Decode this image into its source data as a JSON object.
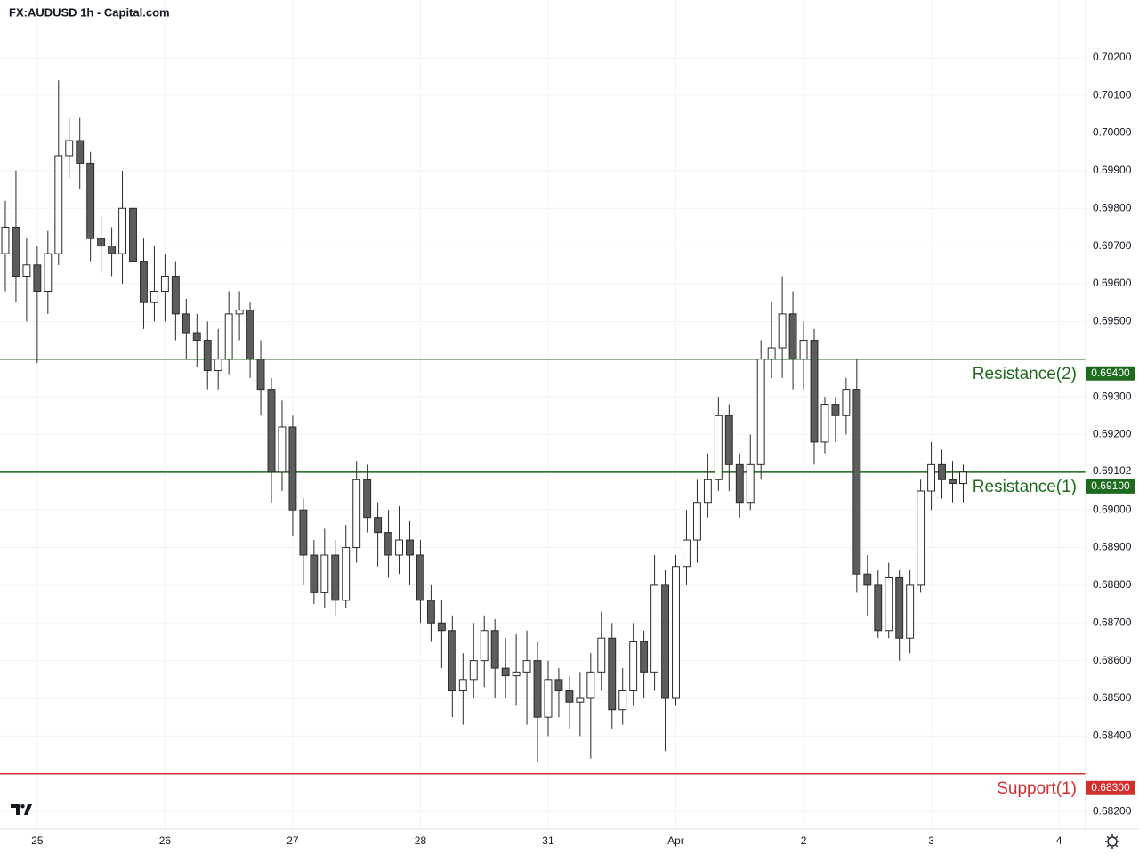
{
  "chart_data": {
    "type": "candlestick",
    "title": "FX:AUDUSD 1h - Capital.com",
    "categories": [
      null,
      null,
      null,
      "25",
      null,
      null,
      null,
      null,
      null,
      null,
      null,
      null,
      null,
      null,
      null,
      "26",
      null,
      null,
      null,
      null,
      null,
      null,
      null,
      null,
      null,
      null,
      null,
      "27",
      null,
      null,
      null,
      null,
      null,
      null,
      null,
      null,
      null,
      null,
      null,
      "28",
      null,
      null,
      null,
      null,
      null,
      null,
      null,
      null,
      null,
      null,
      null,
      "31",
      null,
      null,
      null,
      null,
      null,
      null,
      null,
      null,
      null,
      null,
      null,
      "Apr",
      null,
      null,
      null,
      null,
      null,
      null,
      null,
      null,
      null,
      null,
      null,
      "2",
      null,
      null,
      null,
      null,
      null,
      null,
      null,
      null,
      null,
      null,
      null,
      "3",
      null,
      null,
      null,
      null,
      null,
      null,
      null,
      null,
      null,
      null,
      null,
      "4",
      null,
      null
    ],
    "open": [
      0.6968,
      0.6975,
      0.6962,
      0.6965,
      0.6958,
      0.6968,
      0.6994,
      0.6998,
      0.6992,
      0.6972,
      0.697,
      0.6968,
      0.698,
      0.6966,
      0.6955,
      0.6958,
      0.6962,
      0.6952,
      0.6947,
      0.6945,
      0.6937,
      0.694,
      0.6952,
      0.6953,
      0.694,
      0.6932,
      0.691,
      0.6922,
      0.69,
      0.6888,
      0.6878,
      0.6888,
      0.6876,
      0.689,
      0.6908,
      0.6898,
      0.6894,
      0.6888,
      0.6892,
      0.6888,
      0.6876,
      0.687,
      0.6868,
      0.6852,
      0.6855,
      0.686,
      0.6868,
      0.6858,
      0.6856,
      0.6857,
      0.686,
      0.6845,
      0.6855,
      0.6852,
      0.6849,
      0.685,
      0.6857,
      0.6866,
      0.6847,
      0.6852,
      0.6865,
      0.6857,
      0.688,
      0.685,
      0.6885,
      0.6892,
      0.6902,
      0.6908,
      0.6925,
      0.6912,
      0.6902,
      0.6912,
      0.694,
      0.6943,
      0.6952,
      0.694,
      0.6945,
      0.6918,
      0.6928,
      0.6925,
      0.6932,
      0.6883,
      0.688,
      0.6868,
      0.6882,
      0.6866,
      0.688,
      0.6905,
      0.6912,
      0.6908,
      0.6907,
      null,
      null,
      null,
      null,
      null,
      null,
      null,
      null,
      null,
      null,
      null
    ],
    "high": [
      0.6982,
      0.699,
      0.6972,
      0.697,
      0.6974,
      0.7014,
      0.7004,
      0.7004,
      0.6995,
      0.6978,
      0.6975,
      0.699,
      0.6982,
      0.6972,
      0.697,
      0.6968,
      0.6966,
      0.6956,
      0.6952,
      0.695,
      0.6948,
      0.6958,
      0.6958,
      0.6955,
      0.6945,
      0.6935,
      0.6929,
      0.6925,
      0.6903,
      0.6892,
      0.6895,
      0.6892,
      0.6896,
      0.6913,
      0.6912,
      0.6902,
      0.69,
      0.6901,
      0.6897,
      0.6892,
      0.688,
      0.6876,
      0.6872,
      0.6862,
      0.687,
      0.6872,
      0.6871,
      0.6866,
      0.6867,
      0.6868,
      0.6865,
      0.686,
      0.6858,
      0.6856,
      0.6857,
      0.6862,
      0.6873,
      0.687,
      0.6858,
      0.687,
      0.6868,
      0.6888,
      0.6884,
      0.6888,
      0.69,
      0.6908,
      0.6915,
      0.693,
      0.6928,
      0.6915,
      0.692,
      0.6945,
      0.6955,
      0.6962,
      0.6958,
      0.695,
      0.6948,
      0.693,
      0.693,
      0.6935,
      0.694,
      0.6888,
      0.6884,
      0.6886,
      0.6884,
      0.6884,
      0.6908,
      0.6918,
      0.6916,
      0.6913,
      0.6912,
      null,
      null,
      null,
      null,
      null,
      null,
      null,
      null,
      null,
      null,
      null
    ],
    "low": [
      0.6958,
      0.6955,
      0.695,
      0.6939,
      0.6952,
      0.6965,
      0.6988,
      0.6985,
      0.6966,
      0.6963,
      0.6962,
      0.696,
      0.6958,
      0.6948,
      0.695,
      0.695,
      0.6945,
      0.694,
      0.6938,
      0.6932,
      0.6932,
      0.6936,
      0.6945,
      0.6935,
      0.6925,
      0.6902,
      0.6905,
      0.6893,
      0.688,
      0.6875,
      0.6874,
      0.6872,
      0.6874,
      0.6886,
      0.6894,
      0.6885,
      0.6882,
      0.6883,
      0.688,
      0.687,
      0.6865,
      0.6858,
      0.6845,
      0.6843,
      0.685,
      0.6853,
      0.685,
      0.685,
      0.6848,
      0.6843,
      0.6833,
      0.684,
      0.6845,
      0.6842,
      0.684,
      0.6834,
      0.6852,
      0.6842,
      0.6843,
      0.6848,
      0.685,
      0.6852,
      0.6836,
      0.6848,
      0.688,
      0.6886,
      0.6898,
      0.6905,
      0.6905,
      0.6898,
      0.69,
      0.6908,
      0.6935,
      0.6935,
      0.6932,
      0.6932,
      0.6912,
      0.6915,
      0.6918,
      0.692,
      0.6878,
      0.6872,
      0.6866,
      0.6866,
      0.686,
      0.6862,
      0.6878,
      0.69,
      0.6903,
      0.6902,
      0.6902,
      null,
      null,
      null,
      null,
      null,
      null,
      null,
      null,
      null,
      null,
      null
    ],
    "close": [
      0.6975,
      0.6962,
      0.6965,
      0.6958,
      0.6968,
      0.6994,
      0.6998,
      0.6992,
      0.6972,
      0.697,
      0.6968,
      0.698,
      0.6966,
      0.6955,
      0.6958,
      0.6962,
      0.6952,
      0.6947,
      0.6945,
      0.6937,
      0.694,
      0.6952,
      0.6953,
      0.694,
      0.6932,
      0.691,
      0.6922,
      0.69,
      0.6888,
      0.6878,
      0.6888,
      0.6876,
      0.689,
      0.6908,
      0.6898,
      0.6894,
      0.6888,
      0.6892,
      0.6888,
      0.6876,
      0.687,
      0.6868,
      0.6852,
      0.6855,
      0.686,
      0.6868,
      0.6858,
      0.6856,
      0.6857,
      0.686,
      0.6845,
      0.6855,
      0.6852,
      0.6849,
      0.685,
      0.6857,
      0.6866,
      0.6847,
      0.6852,
      0.6865,
      0.6857,
      0.688,
      0.685,
      0.6885,
      0.6892,
      0.6902,
      0.6908,
      0.6925,
      0.6912,
      0.6902,
      0.6912,
      0.694,
      0.6943,
      0.6952,
      0.694,
      0.6945,
      0.6918,
      0.6928,
      0.6925,
      0.6932,
      0.6883,
      0.688,
      0.6868,
      0.6882,
      0.6866,
      0.688,
      0.6905,
      0.6912,
      0.6908,
      0.6907,
      0.691,
      null,
      null,
      null,
      null,
      null,
      null,
      null,
      null,
      null,
      null,
      null
    ],
    "up_color": "#ffffff",
    "down_color": "#5d5d5d",
    "edge_color": "#2a2a2a",
    "ylim": [
      0.68153,
      0.70353
    ],
    "yticks": [
      {
        "value": 0.682,
        "label": "0.68200"
      },
      {
        "value": 0.684,
        "label": "0.68400"
      },
      {
        "value": 0.685,
        "label": "0.68500"
      },
      {
        "value": 0.686,
        "label": "0.68600"
      },
      {
        "value": 0.687,
        "label": "0.68700"
      },
      {
        "value": 0.688,
        "label": "0.68800"
      },
      {
        "value": 0.689,
        "label": "0.68900"
      },
      {
        "value": 0.69,
        "label": "0.69000"
      },
      {
        "value": 0.692,
        "label": "0.69200"
      },
      {
        "value": 0.693,
        "label": "0.69300"
      },
      {
        "value": 0.695,
        "label": "0.69500"
      },
      {
        "value": 0.696,
        "label": "0.69600"
      },
      {
        "value": 0.697,
        "label": "0.69700"
      },
      {
        "value": 0.698,
        "label": "0.69800"
      },
      {
        "value": 0.699,
        "label": "0.69900"
      },
      {
        "value": 0.7,
        "label": "0.70000"
      },
      {
        "value": 0.701,
        "label": "0.70100"
      },
      {
        "value": 0.702,
        "label": "0.70200"
      }
    ],
    "grid": true,
    "last_price": {
      "value": 0.69102,
      "label": "0.69102"
    },
    "levels": [
      {
        "name": "Resistance(2)",
        "value": 0.694,
        "label": "0.69400",
        "color": "#1e6b1e"
      },
      {
        "name": "Resistance(1)",
        "value": 0.691,
        "label": "0.69100",
        "color": "#1e6b1e"
      },
      {
        "name": "Support(1)",
        "value": 0.683,
        "label": "0.68300",
        "color": "#d32f2f"
      }
    ]
  }
}
